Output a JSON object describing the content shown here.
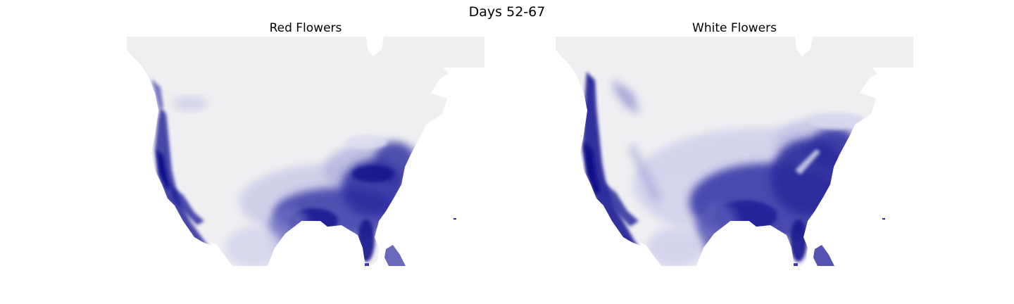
{
  "figure": {
    "title": "Days 52-67"
  },
  "panels": [
    {
      "title": "Red Flowers",
      "colormap": "Purples/Blues (light gray to dark navy)",
      "color_low": "#efeff2",
      "color_high": "#10108a"
    },
    {
      "title": "White Flowers",
      "colormap": "Purples/Blues (light gray to dark navy)",
      "color_low": "#efeff2",
      "color_high": "#10108a"
    }
  ]
}
